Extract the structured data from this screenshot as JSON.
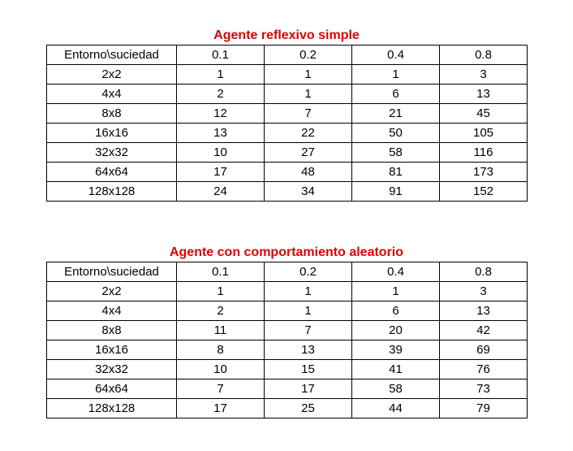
{
  "tables": [
    {
      "title": "Agente reflexivo simple",
      "header": [
        "Entorno\\suciedad",
        "0.1",
        "0.2",
        "0.4",
        "0.8"
      ],
      "rows": [
        [
          "2x2",
          "1",
          "1",
          "1",
          "3"
        ],
        [
          "4x4",
          "2",
          "1",
          "6",
          "13"
        ],
        [
          "8x8",
          "12",
          "7",
          "21",
          "45"
        ],
        [
          "16x16",
          "13",
          "22",
          "50",
          "105"
        ],
        [
          "32x32",
          "10",
          "27",
          "58",
          "116"
        ],
        [
          "64x64",
          "17",
          "48",
          "81",
          "173"
        ],
        [
          "128x128",
          "24",
          "34",
          "91",
          "152"
        ]
      ]
    },
    {
      "title": "Agente con comportamiento aleatorio",
      "header": [
        "Entorno\\suciedad",
        "0.1",
        "0.2",
        "0.4",
        "0.8"
      ],
      "rows": [
        [
          "2x2",
          "1",
          "1",
          "1",
          "3"
        ],
        [
          "4x4",
          "2",
          "1",
          "6",
          "13"
        ],
        [
          "8x8",
          "11",
          "7",
          "20",
          "42"
        ],
        [
          "16x16",
          "8",
          "13",
          "39",
          "69"
        ],
        [
          "32x32",
          "10",
          "15",
          "41",
          "76"
        ],
        [
          "64x64",
          "7",
          "17",
          "58",
          "73"
        ],
        [
          "128x128",
          "17",
          "25",
          "44",
          "79"
        ]
      ]
    }
  ],
  "colors": {
    "title": "#e00000",
    "border": "#000000"
  }
}
